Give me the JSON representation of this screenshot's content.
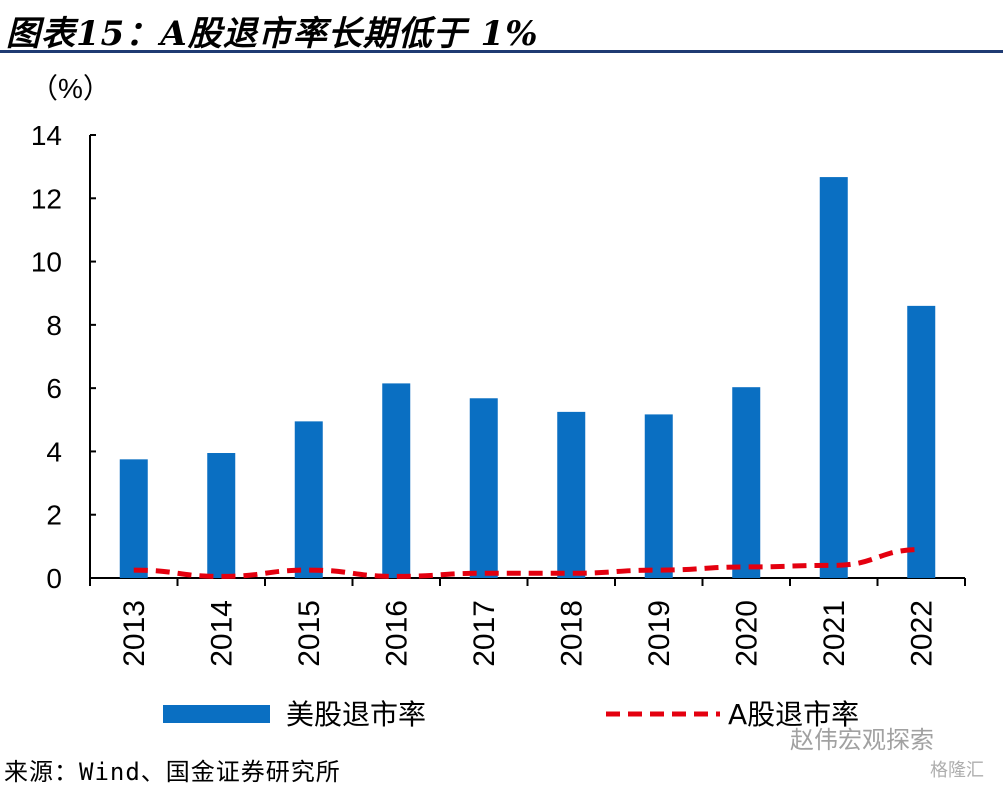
{
  "title": "图表15：A股退市率长期低于 1%",
  "source": "来源：Wind、国金证券研究所",
  "watermark": "赵伟宏观探索",
  "watermark_brand": "格隆汇",
  "colors": {
    "bar": "#0a6fc2",
    "line": "#e4000f",
    "title_rule": "#1f3b73"
  },
  "chart_data": {
    "type": "bar",
    "ylabel": "（%）",
    "ylim": [
      0,
      14
    ],
    "yticks": [
      0,
      2,
      4,
      6,
      8,
      10,
      12,
      14
    ],
    "categories": [
      "2013",
      "2014",
      "2015",
      "2016",
      "2017",
      "2018",
      "2019",
      "2020",
      "2021",
      "2022"
    ],
    "series": [
      {
        "name": "美股退市率",
        "type": "bar",
        "values": [
          3.75,
          3.95,
          4.95,
          6.15,
          5.68,
          5.25,
          5.17,
          6.03,
          12.67,
          8.6
        ]
      },
      {
        "name": "A股退市率",
        "type": "line",
        "style": "dashed",
        "values": [
          0.25,
          0.05,
          0.25,
          0.05,
          0.15,
          0.15,
          0.25,
          0.35,
          0.4,
          0.9
        ]
      }
    ],
    "legend": "bottom",
    "grid": false
  }
}
